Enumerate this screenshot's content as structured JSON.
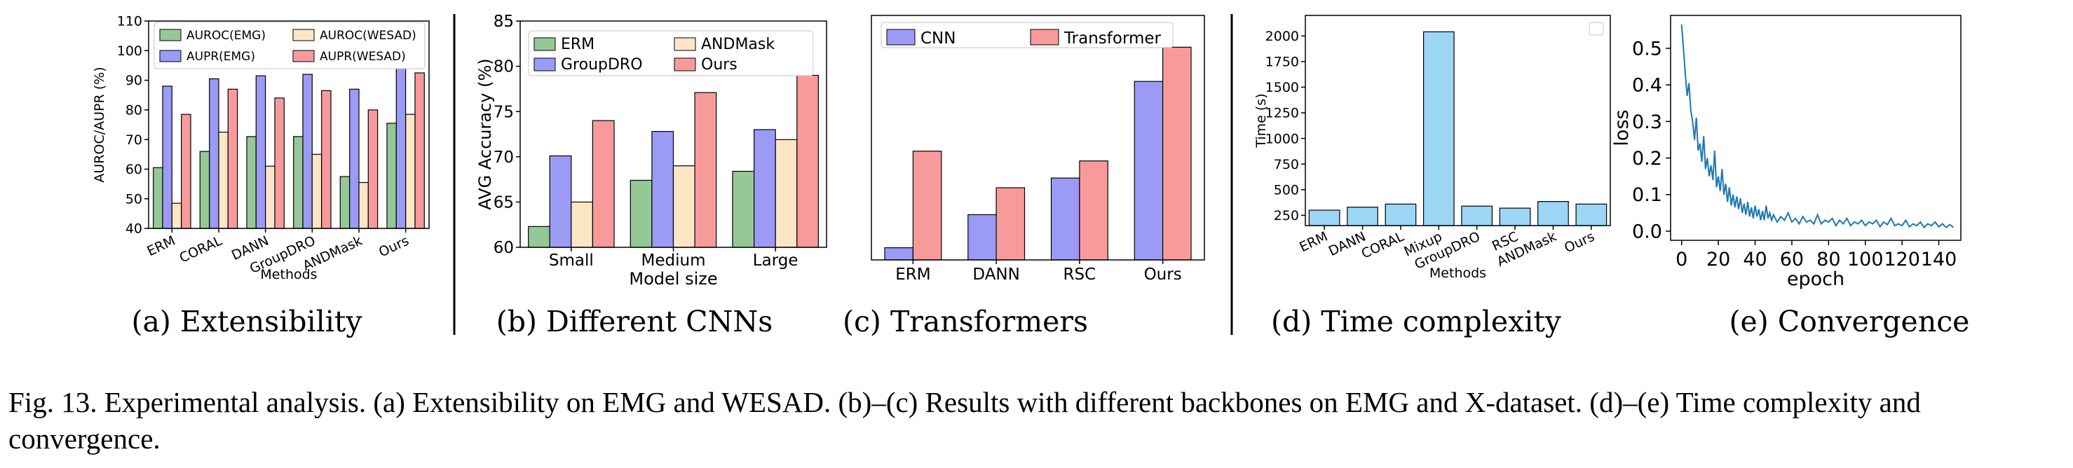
{
  "figure": {
    "subcaptions": [
      "(a)  Extensibility",
      "(b)  Different CNNs",
      "(c)  Transformers",
      "(d)  Time complexity",
      "(e)  Convergence"
    ],
    "caption": "Fig. 13.     Experimental analysis. (a) Extensibility on EMG and WESAD. (b)–(c) Results with different backbones on EMG and X-dataset. (d)–(e) Time complexity and convergence."
  },
  "colors": {
    "green": "#96c896",
    "blue": "#9b9bf5",
    "cream": "#fde6c6",
    "red": "#f99a9a",
    "sky": "#9dd5f5",
    "line": "#1f77b4",
    "axis": "#000000",
    "divider": "#000000"
  },
  "chart_data": [
    {
      "type": "bar",
      "xlabel": "Methods",
      "ylabel": "AUROC/AUPR (%)",
      "ylim": [
        40,
        110
      ],
      "yticks": [
        40,
        50,
        60,
        70,
        80,
        90,
        100,
        110
      ],
      "categories": [
        "ERM",
        "CORAL",
        "DANN",
        "GroupDRO",
        "ANDMask",
        "Ours"
      ],
      "legend_position": "top",
      "series": [
        {
          "name": "AUROC(EMG)",
          "color": "green",
          "values": [
            60.5,
            66,
            71,
            71,
            57.5,
            75.5
          ]
        },
        {
          "name": "AUPR(EMG)",
          "color": "blue",
          "values": [
            88,
            90.5,
            91.5,
            92,
            87,
            94
          ]
        },
        {
          "name": "AUROC(WESAD)",
          "color": "cream",
          "values": [
            48.5,
            72.5,
            61,
            65,
            55.5,
            78.5
          ]
        },
        {
          "name": "AUPR(WESAD)",
          "color": "red",
          "values": [
            78.5,
            87,
            84,
            86.5,
            80,
            92.5
          ]
        }
      ]
    },
    {
      "type": "bar",
      "xlabel": "Model size",
      "ylabel": "AVG Accuracy (%)",
      "ylim": [
        60,
        85
      ],
      "yticks": [
        60,
        65,
        70,
        75,
        80,
        85
      ],
      "categories": [
        "Small",
        "Medium",
        "Large"
      ],
      "legend_position": "top-left",
      "series": [
        {
          "name": "ERM",
          "color": "green",
          "values": [
            62.3,
            67.4,
            68.4
          ]
        },
        {
          "name": "GroupDRO",
          "color": "blue",
          "values": [
            70.1,
            72.8,
            73
          ]
        },
        {
          "name": "ANDMask",
          "color": "cream",
          "values": [
            65,
            69,
            71.9
          ]
        },
        {
          "name": "Ours",
          "color": "red",
          "values": [
            74,
            77.1,
            79
          ]
        }
      ]
    },
    {
      "type": "bar",
      "xlabel": "",
      "ylabel": "",
      "ylim": [
        0,
        100
      ],
      "categories": [
        "ERM",
        "DANN",
        "RSC",
        "Ours"
      ],
      "legend_position": "top",
      "series": [
        {
          "name": "CNN",
          "color": "blue",
          "values": [
            5,
            18.5,
            33.5,
            73
          ]
        },
        {
          "name": "Transformer",
          "color": "red",
          "values": [
            44.5,
            29.5,
            40.5,
            87
          ]
        }
      ]
    },
    {
      "type": "bar",
      "xlabel": "Methods",
      "ylabel": "Time (s)",
      "ylim": [
        150,
        2200
      ],
      "yticks": [
        250,
        500,
        750,
        1000,
        1250,
        1500,
        1750,
        2000
      ],
      "categories": [
        "ERM",
        "DANN",
        "CORAL",
        "Mixup",
        "GroupDRO",
        "RSC",
        "ANDMask",
        "Ours"
      ],
      "legend_position": "top-right",
      "series": [
        {
          "color": "sky",
          "values": [
            300,
            330,
            360,
            2040,
            340,
            320,
            385,
            360
          ]
        }
      ]
    },
    {
      "type": "line",
      "xlabel": "epoch",
      "ylabel": "loss",
      "xlim": [
        -6,
        152
      ],
      "ylim": [
        -0.025,
        0.59
      ],
      "xticks": [
        0,
        20,
        40,
        60,
        80,
        100,
        120,
        140
      ],
      "yticks": [
        0.0,
        0.1,
        0.2,
        0.3,
        0.4,
        0.5
      ],
      "series": [
        {
          "color": "line",
          "x": [
            0,
            1,
            2,
            3,
            4,
            5,
            6,
            7,
            8,
            9,
            10,
            11,
            12,
            13,
            14,
            15,
            16,
            17,
            18,
            19,
            20,
            21,
            22,
            23,
            24,
            25,
            26,
            27,
            28,
            29,
            30,
            31,
            32,
            33,
            34,
            35,
            36,
            37,
            38,
            39,
            40,
            41,
            42,
            43,
            44,
            45,
            46,
            47,
            48,
            49,
            50,
            52,
            54,
            56,
            58,
            60,
            62,
            64,
            66,
            68,
            70,
            72,
            74,
            76,
            78,
            80,
            82,
            84,
            86,
            88,
            90,
            92,
            94,
            96,
            98,
            100,
            102,
            104,
            106,
            108,
            110,
            112,
            114,
            116,
            118,
            120,
            122,
            124,
            126,
            128,
            130,
            132,
            134,
            136,
            138,
            140,
            142,
            144,
            146,
            148
          ],
          "y": [
            0.565,
            0.5,
            0.43,
            0.37,
            0.405,
            0.33,
            0.3,
            0.25,
            0.31,
            0.22,
            0.24,
            0.19,
            0.26,
            0.17,
            0.2,
            0.15,
            0.18,
            0.14,
            0.22,
            0.12,
            0.15,
            0.11,
            0.17,
            0.1,
            0.13,
            0.08,
            0.12,
            0.07,
            0.1,
            0.065,
            0.095,
            0.06,
            0.09,
            0.05,
            0.075,
            0.045,
            0.08,
            0.04,
            0.065,
            0.035,
            0.07,
            0.04,
            0.06,
            0.03,
            0.055,
            0.03,
            0.07,
            0.035,
            0.05,
            0.03,
            0.045,
            0.025,
            0.04,
            0.03,
            0.05,
            0.025,
            0.035,
            0.02,
            0.04,
            0.025,
            0.03,
            0.02,
            0.045,
            0.02,
            0.03,
            0.025,
            0.035,
            0.015,
            0.03,
            0.02,
            0.035,
            0.015,
            0.025,
            0.02,
            0.03,
            0.015,
            0.025,
            0.02,
            0.03,
            0.012,
            0.025,
            0.018,
            0.035,
            0.015,
            0.02,
            0.015,
            0.03,
            0.012,
            0.02,
            0.015,
            0.025,
            0.01,
            0.02,
            0.015,
            0.025,
            0.012,
            0.02,
            0.01,
            0.018,
            0.01
          ]
        }
      ]
    }
  ]
}
